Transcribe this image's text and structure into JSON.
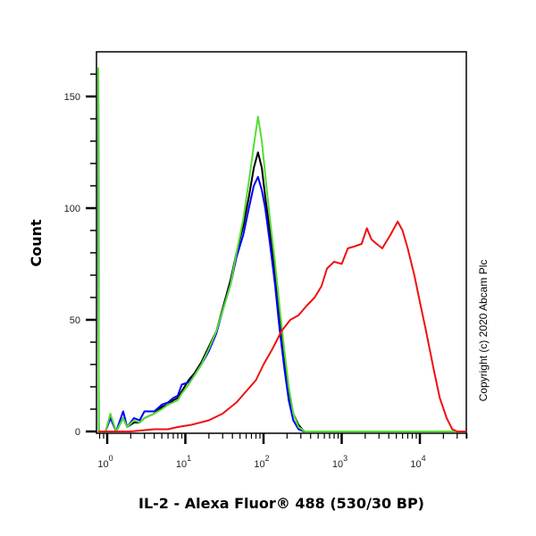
{
  "chart_data": {
    "type": "line",
    "title": "",
    "xlabel": "IL-2 - Alexa Fluor® 488 (530/30 BP)",
    "ylabel": "Count",
    "xscale": "log",
    "xlim": [
      0.7,
      55000
    ],
    "ylim": [
      0,
      165
    ],
    "x_ticks": [
      "10^0",
      "10^1",
      "10^2",
      "10^3",
      "10^4"
    ],
    "y_ticks": [
      "0",
      "50",
      "100",
      "150"
    ],
    "grid": false,
    "legend": null,
    "annotation": "Copyright (c) 2020 Abcam Plc",
    "series": [
      {
        "name": "black",
        "color": "#000000",
        "points": [
          [
            0.72,
            163
          ],
          [
            0.78,
            0
          ],
          [
            0.95,
            0
          ],
          [
            1.1,
            7
          ],
          [
            1.3,
            0
          ],
          [
            1.6,
            6
          ],
          [
            1.8,
            2
          ],
          [
            2.2,
            4
          ],
          [
            2.6,
            4
          ],
          [
            3,
            6
          ],
          [
            4,
            8
          ],
          [
            5,
            11
          ],
          [
            6,
            12
          ],
          [
            7,
            14
          ],
          [
            8,
            15
          ],
          [
            9,
            18
          ],
          [
            11,
            23
          ],
          [
            13,
            26
          ],
          [
            16,
            31
          ],
          [
            20,
            38
          ],
          [
            25,
            45
          ],
          [
            30,
            55
          ],
          [
            38,
            68
          ],
          [
            45,
            80
          ],
          [
            55,
            92
          ],
          [
            65,
            105
          ],
          [
            75,
            118
          ],
          [
            85,
            125
          ],
          [
            95,
            118
          ],
          [
            105,
            105
          ],
          [
            120,
            90
          ],
          [
            140,
            72
          ],
          [
            160,
            52
          ],
          [
            185,
            34
          ],
          [
            210,
            18
          ],
          [
            240,
            8
          ],
          [
            280,
            3
          ],
          [
            330,
            0
          ],
          [
            50000,
            0
          ]
        ]
      },
      {
        "name": "blue",
        "color": "#0000ff",
        "points": [
          [
            0.72,
            163
          ],
          [
            0.78,
            0
          ],
          [
            0.95,
            0
          ],
          [
            1.1,
            6
          ],
          [
            1.3,
            0
          ],
          [
            1.6,
            9
          ],
          [
            1.8,
            2
          ],
          [
            2.2,
            6
          ],
          [
            2.6,
            5
          ],
          [
            3,
            9
          ],
          [
            4,
            9
          ],
          [
            5,
            12
          ],
          [
            6,
            13
          ],
          [
            7,
            15
          ],
          [
            8,
            16
          ],
          [
            9,
            21
          ],
          [
            11,
            22
          ],
          [
            13,
            25
          ],
          [
            16,
            30
          ],
          [
            20,
            36
          ],
          [
            25,
            44
          ],
          [
            30,
            54
          ],
          [
            38,
            66
          ],
          [
            45,
            78
          ],
          [
            55,
            88
          ],
          [
            65,
            100
          ],
          [
            75,
            110
          ],
          [
            85,
            114
          ],
          [
            95,
            108
          ],
          [
            105,
            100
          ],
          [
            120,
            85
          ],
          [
            140,
            66
          ],
          [
            160,
            46
          ],
          [
            185,
            28
          ],
          [
            210,
            14
          ],
          [
            240,
            5
          ],
          [
            280,
            1
          ],
          [
            330,
            0
          ],
          [
            50000,
            0
          ]
        ]
      },
      {
        "name": "green",
        "color": "#55dd33",
        "points": [
          [
            0.72,
            163
          ],
          [
            0.78,
            0
          ],
          [
            0.95,
            0
          ],
          [
            1.1,
            8
          ],
          [
            1.3,
            0
          ],
          [
            1.6,
            6
          ],
          [
            1.8,
            2
          ],
          [
            2.2,
            5
          ],
          [
            2.6,
            4
          ],
          [
            3,
            6
          ],
          [
            4,
            8
          ],
          [
            5,
            10
          ],
          [
            6,
            12
          ],
          [
            7,
            13
          ],
          [
            8,
            14
          ],
          [
            9,
            17
          ],
          [
            11,
            21
          ],
          [
            13,
            25
          ],
          [
            16,
            30
          ],
          [
            20,
            37
          ],
          [
            25,
            45
          ],
          [
            30,
            54
          ],
          [
            38,
            66
          ],
          [
            45,
            80
          ],
          [
            55,
            95
          ],
          [
            65,
            112
          ],
          [
            75,
            128
          ],
          [
            85,
            141
          ],
          [
            95,
            130
          ],
          [
            105,
            115
          ],
          [
            120,
            96
          ],
          [
            140,
            76
          ],
          [
            160,
            56
          ],
          [
            185,
            36
          ],
          [
            210,
            20
          ],
          [
            240,
            8
          ],
          [
            280,
            2
          ],
          [
            340,
            0
          ],
          [
            50000,
            0
          ]
        ]
      },
      {
        "name": "red",
        "color": "#ee1111",
        "points": [
          [
            0.72,
            0
          ],
          [
            2,
            0
          ],
          [
            4,
            1
          ],
          [
            6,
            1
          ],
          [
            8,
            2
          ],
          [
            12,
            3
          ],
          [
            20,
            5
          ],
          [
            30,
            8
          ],
          [
            45,
            13
          ],
          [
            60,
            18
          ],
          [
            80,
            23
          ],
          [
            100,
            30
          ],
          [
            130,
            37
          ],
          [
            170,
            45
          ],
          [
            220,
            50
          ],
          [
            280,
            52
          ],
          [
            350,
            56
          ],
          [
            450,
            60
          ],
          [
            550,
            65
          ],
          [
            650,
            73
          ],
          [
            800,
            76
          ],
          [
            1000,
            75
          ],
          [
            1200,
            82
          ],
          [
            1500,
            83
          ],
          [
            1800,
            84
          ],
          [
            2100,
            91
          ],
          [
            2400,
            86
          ],
          [
            2800,
            84
          ],
          [
            3300,
            82
          ],
          [
            4200,
            88
          ],
          [
            5200,
            94
          ],
          [
            6000,
            90
          ],
          [
            7000,
            82
          ],
          [
            8500,
            70
          ],
          [
            10000,
            58
          ],
          [
            12000,
            45
          ],
          [
            15000,
            28
          ],
          [
            18000,
            15
          ],
          [
            22000,
            6
          ],
          [
            26000,
            1
          ],
          [
            30000,
            0
          ],
          [
            50000,
            0
          ]
        ]
      }
    ]
  },
  "axes": {
    "y_tick_labels": [
      "0",
      "50",
      "100",
      "150"
    ],
    "x_tick_base": "10",
    "x_tick_exponents": [
      "0",
      "1",
      "2",
      "3",
      "4"
    ],
    "xlabel": "IL-2 - Alexa Fluor® 488 (530/30 BP)",
    "ylabel": "Count",
    "copyright": "Copyright (c) 2020 Abcam Plc"
  }
}
